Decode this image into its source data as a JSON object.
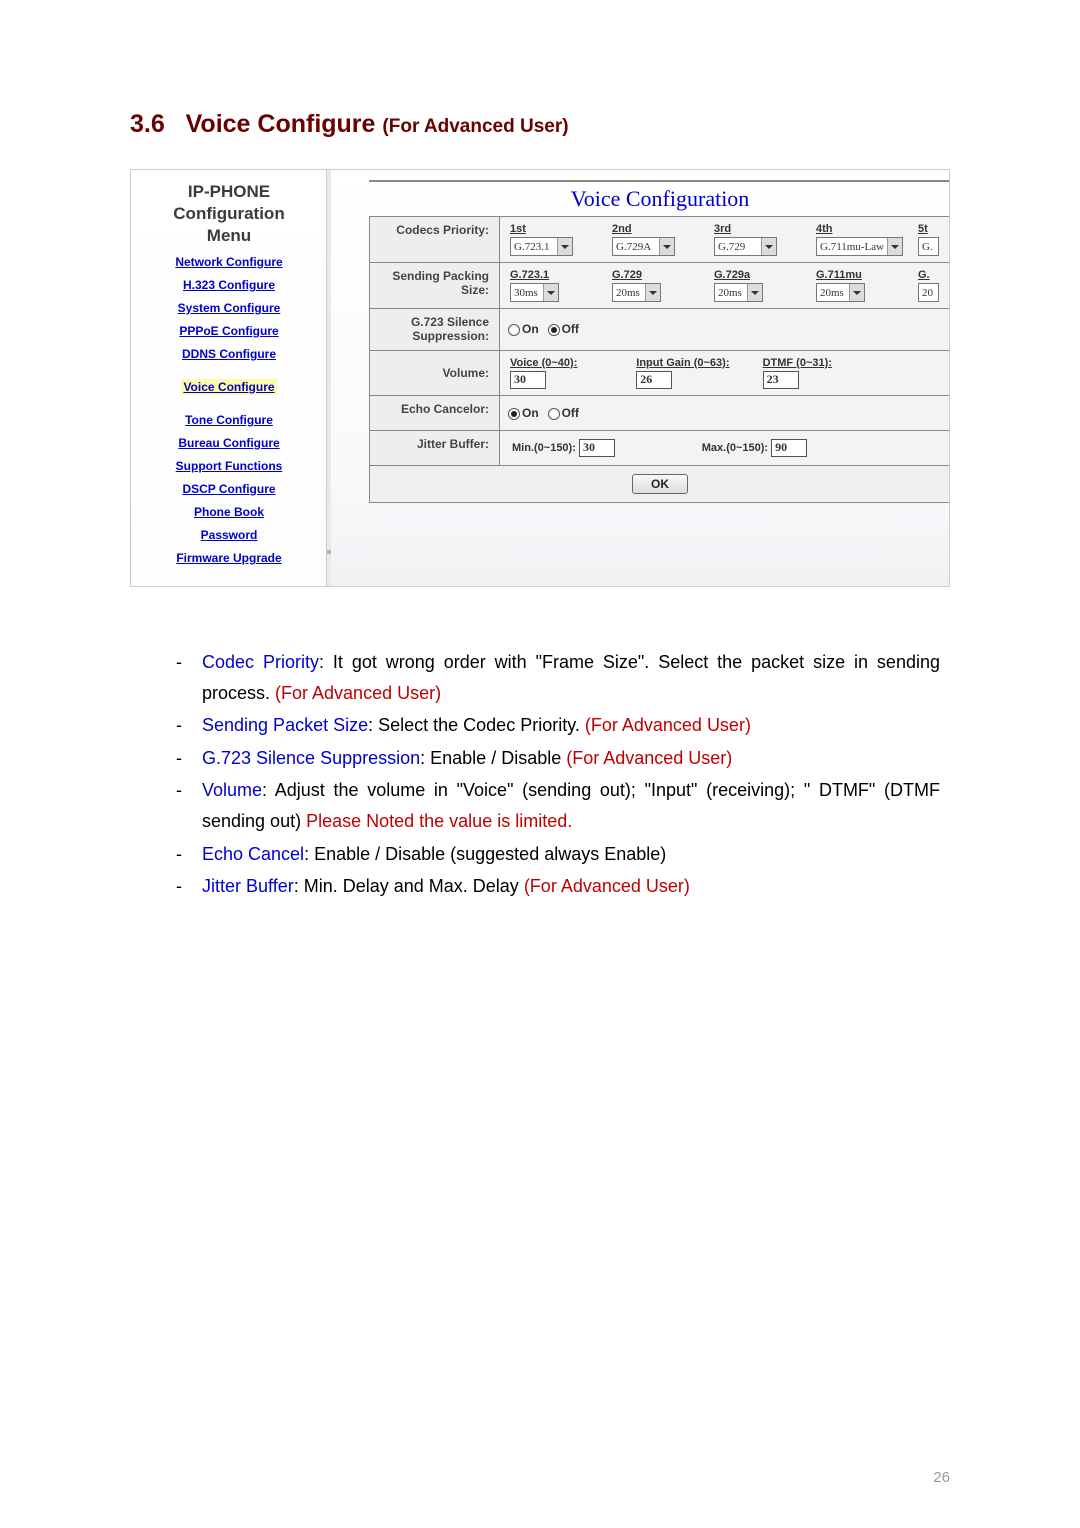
{
  "section": {
    "number": "3.6",
    "title": "Voice Configure",
    "subtitle": "(For Advanced User)"
  },
  "sidebar": {
    "heading1": "IP-PHONE",
    "heading2": "Configuration",
    "heading3": "Menu",
    "items": [
      "Network Configure",
      "H.323 Configure",
      "System Configure",
      "PPPoE Configure",
      "DDNS Configure",
      "Voice Configure",
      "Tone Configure",
      "Bureau Configure",
      "Support Functions",
      "DSCP Configure",
      "Phone Book",
      "Password",
      "Firmware Upgrade"
    ],
    "current_index": 5
  },
  "panel_title": "Voice Configuration",
  "codecs_row": {
    "label": "Codecs Priority:",
    "cols": [
      {
        "head": "1st",
        "value": "G.723.1"
      },
      {
        "head": "2nd",
        "value": "G.729A"
      },
      {
        "head": "3rd",
        "value": "G.729"
      },
      {
        "head": "4th",
        "value": "G.711mu-Law"
      },
      {
        "head": "5t",
        "value": "G."
      }
    ]
  },
  "packet_row": {
    "label": "Sending Packing Size:",
    "cols": [
      {
        "head": "G.723.1",
        "value": "30ms"
      },
      {
        "head": "G.729",
        "value": "20ms"
      },
      {
        "head": "G.729a",
        "value": "20ms"
      },
      {
        "head": "G.711mu",
        "value": "20ms"
      },
      {
        "head": "G.",
        "value": "20"
      }
    ]
  },
  "g723_row": {
    "label": "G.723 Silence Suppression:",
    "on_label": "On",
    "off_label": "Off",
    "selected": "off"
  },
  "volume_row": {
    "label": "Volume:",
    "cells": [
      {
        "head": "Voice (0~40):",
        "value": "30"
      },
      {
        "head": "Input Gain (0~63):",
        "value": "26"
      },
      {
        "head": "DTMF (0~31):",
        "value": "23"
      }
    ]
  },
  "echo_row": {
    "label": "Echo Cancelor:",
    "on_label": "On",
    "off_label": "Off",
    "selected": "on"
  },
  "jitter_row": {
    "label": "Jitter Buffer:",
    "min_label": "Min.(0~150):",
    "min_value": "30",
    "max_label": "Max.(0~150):",
    "max_value": "90"
  },
  "ok_label": "OK",
  "desc": {
    "items": [
      {
        "parts": [
          {
            "t": "Codec Priority",
            "c": "blue"
          },
          {
            "t": ": It got wrong order with \"Frame Size\". Select the packet size in sending process. ",
            "c": ""
          },
          {
            "t": "(For Advanced User)",
            "c": "red"
          }
        ]
      },
      {
        "parts": [
          {
            "t": "Sending Packet Size",
            "c": "blue"
          },
          {
            "t": ": Select the Codec Priority. ",
            "c": ""
          },
          {
            "t": "(For Advanced User)",
            "c": "red"
          }
        ]
      },
      {
        "parts": [
          {
            "t": "G.723 Silence Suppression",
            "c": "blue"
          },
          {
            "t": ": Enable / Disable ",
            "c": ""
          },
          {
            "t": "(For Advanced User)",
            "c": "red"
          }
        ]
      },
      {
        "parts": [
          {
            "t": "Volume",
            "c": "blue"
          },
          {
            "t": ": Adjust the volume in \"Voice\" (sending out); \"Input\" (receiving); \" DTMF\" (DTMF sending out) ",
            "c": ""
          },
          {
            "t": "Please Noted the value is limited.",
            "c": "red"
          }
        ]
      },
      {
        "parts": [
          {
            "t": "Echo Cancel",
            "c": "blue"
          },
          {
            "t": ": Enable / Disable (suggested always Enable)",
            "c": ""
          }
        ]
      },
      {
        "parts": [
          {
            "t": "Jitter Buffer",
            "c": "blue"
          },
          {
            "t": ": Min. Delay and Max. Delay ",
            "c": ""
          },
          {
            "t": "(For Advanced User)",
            "c": "red"
          }
        ]
      }
    ]
  },
  "page_number": "26",
  "colors": {
    "heading": "#6a0000",
    "link_blue": "#0000cc",
    "desc_red": "#c00000",
    "page_num": "#9a9a9a"
  }
}
